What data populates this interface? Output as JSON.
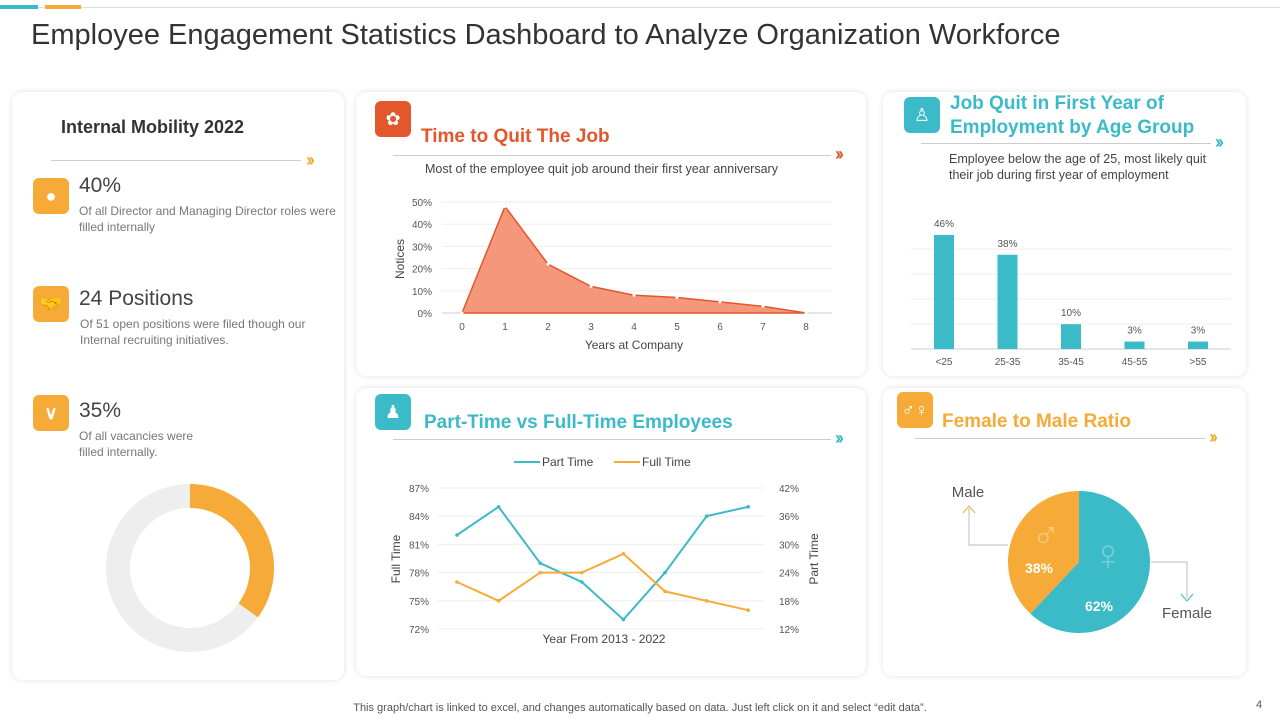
{
  "title": "Employee Engagement Statistics Dashboard to Analyze Organization Workforce",
  "colors": {
    "orange": "#F6AA38",
    "teal": "#3BBAC8",
    "red_orange": "#E2572B",
    "salmon": "#F4977A"
  },
  "internal_mobility": {
    "title": "Internal Mobility 2022",
    "stats": [
      {
        "icon": "person-icon",
        "value": "40%",
        "text": "Of all Director and Managing Director roles were filled internally"
      },
      {
        "icon": "handshake-icon",
        "value": "24 Positions",
        "text": "Of 51 open  positions were filed though our Internal recruiting initiatives."
      },
      {
        "icon": "checkmark-icon",
        "value": "35%",
        "text": "Of all vacancies were filled internally."
      }
    ],
    "donut_fraction": 0.35
  },
  "time_to_quit": {
    "title": "Time to Quit The Job",
    "subtitle": "Most of the employee quit job around their first year anniversary"
  },
  "part_full": {
    "title": "Part-Time vs Full-Time Employees"
  },
  "age_group": {
    "title_line1": "Job Quit in First Year of",
    "title_line2": "Employment by Age Group",
    "subtitle": "Employee below the age of 25, most likely quit their job during first year of employment"
  },
  "ratio": {
    "title": "Female to Male Ratio"
  },
  "footer": {
    "note": "This graph/chart is linked to excel, and changes automatically based on data. Just left click on it and select “edit data”.",
    "page": "4"
  },
  "chart_data": [
    {
      "type": "area",
      "x": [
        0,
        1,
        2,
        3,
        4,
        5,
        6,
        7,
        8
      ],
      "values": [
        0,
        48,
        22,
        12,
        8,
        7,
        5,
        3,
        0
      ],
      "xlabel": "Years at Company",
      "ylabel": "Notices",
      "ylim": [
        0,
        50
      ],
      "yticks": [
        "0%",
        "10%",
        "20%",
        "30%",
        "40%",
        "50%"
      ],
      "grid": true
    },
    {
      "type": "line",
      "xlabel": "Year From 2013 - 2022",
      "legend": "top",
      "series": [
        {
          "name": "Part Time",
          "axis": "right",
          "values": [
            32,
            38,
            26,
            22,
            14,
            24,
            36,
            38
          ],
          "color": "#3BBAC8"
        },
        {
          "name": "Full Time",
          "axis": "left",
          "values": [
            77,
            75,
            78,
            78,
            80,
            76,
            75,
            74
          ],
          "color": "#F6AA38"
        }
      ],
      "ylabel_left": "Full Time",
      "ylabel_right": "Part Time",
      "ylim_left": [
        72,
        87
      ],
      "ylim_right": [
        12,
        42
      ],
      "yticks_left": [
        "72%",
        "75%",
        "78%",
        "81%",
        "84%",
        "87%"
      ],
      "yticks_right": [
        "12%",
        "18%",
        "24%",
        "30%",
        "36%",
        "42%"
      ],
      "grid": true
    },
    {
      "type": "bar",
      "categories": [
        "<25",
        "25-35",
        "35-45",
        "45-55",
        ">55"
      ],
      "values": [
        46,
        38,
        10,
        3,
        3
      ],
      "data_labels": [
        "46%",
        "38%",
        "10%",
        "3%",
        "3%"
      ],
      "grid": true
    },
    {
      "type": "pie",
      "slices": [
        {
          "name": "Male",
          "value": 38,
          "label": "38%",
          "color": "#F6AA38"
        },
        {
          "name": "Female",
          "value": 62,
          "label": "62%",
          "color": "#3BBAC8"
        }
      ]
    }
  ]
}
